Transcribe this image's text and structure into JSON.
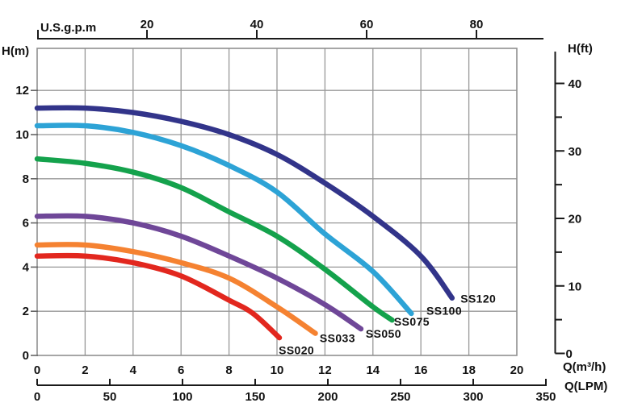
{
  "chart_data": {
    "type": "line",
    "title": "",
    "xlabel_primary": "Q(m³/h)",
    "xlabel_secondary": "Q(LPM)",
    "xlabel_top": "U.S.g.p.m",
    "ylabel_left": "H(m)",
    "ylabel_right": "H(ft)",
    "xlim_m3h": [
      0,
      20
    ],
    "ylim_m": [
      0,
      13.9
    ],
    "grid": true,
    "legend_position": "inline-curve-end-labels",
    "x_axes": [
      {
        "id": "usgpm",
        "label": "U.S.g.p.m",
        "position": "top",
        "ticks": [
          20,
          40,
          60,
          80
        ]
      },
      {
        "id": "m3h",
        "label": "Q(m³/h)",
        "position": "bottom",
        "ticks": [
          0,
          2,
          4,
          6,
          8,
          10,
          12,
          14,
          16,
          18,
          20
        ]
      },
      {
        "id": "lpm",
        "label": "Q(LPM)",
        "position": "bottom-outer",
        "ticks": [
          0,
          50,
          100,
          150,
          200,
          250,
          300,
          350
        ]
      }
    ],
    "y_axes": [
      {
        "id": "hm",
        "label": "H(m)",
        "position": "left",
        "ticks": [
          0,
          2,
          4,
          6,
          8,
          10,
          12
        ]
      },
      {
        "id": "hft",
        "label": "H(ft)",
        "position": "right",
        "ticks": [
          0,
          10,
          20,
          30,
          40
        ],
        "minor_ticks": [
          5,
          15,
          25,
          35
        ]
      }
    ],
    "series": [
      {
        "name": "SS120",
        "color": "#32348a",
        "points": [
          [
            0,
            11.2
          ],
          [
            2,
            11.2
          ],
          [
            4,
            11.0
          ],
          [
            6,
            10.6
          ],
          [
            8,
            10.0
          ],
          [
            10,
            9.1
          ],
          [
            12,
            7.8
          ],
          [
            14,
            6.3
          ],
          [
            16,
            4.5
          ],
          [
            17.3,
            2.6
          ]
        ],
        "label_at": [
          17.65,
          2.39
        ]
      },
      {
        "name": "SS100",
        "color": "#2da3d6",
        "points": [
          [
            0,
            10.4
          ],
          [
            2,
            10.4
          ],
          [
            4,
            10.1
          ],
          [
            6,
            9.5
          ],
          [
            8,
            8.6
          ],
          [
            10,
            7.4
          ],
          [
            12,
            5.5
          ],
          [
            14,
            3.8
          ],
          [
            15.6,
            1.9
          ]
        ],
        "label_at": [
          16.23,
          1.84
        ]
      },
      {
        "name": "SS075",
        "color": "#14a24c",
        "points": [
          [
            0,
            8.9
          ],
          [
            2,
            8.7
          ],
          [
            4,
            8.3
          ],
          [
            6,
            7.6
          ],
          [
            8,
            6.5
          ],
          [
            10,
            5.4
          ],
          [
            12,
            3.9
          ],
          [
            14,
            2.2
          ],
          [
            14.8,
            1.6
          ]
        ],
        "label_at": [
          14.88,
          1.35
        ]
      },
      {
        "name": "SS050",
        "color": "#6f4798",
        "points": [
          [
            0,
            6.3
          ],
          [
            2,
            6.3
          ],
          [
            4,
            6.0
          ],
          [
            6,
            5.4
          ],
          [
            8,
            4.5
          ],
          [
            10,
            3.5
          ],
          [
            12,
            2.3
          ],
          [
            13.5,
            1.2
          ]
        ],
        "label_at": [
          13.7,
          0.8
        ]
      },
      {
        "name": "SS033",
        "color": "#f58231",
        "points": [
          [
            0,
            5.0
          ],
          [
            2,
            5.0
          ],
          [
            4,
            4.7
          ],
          [
            6,
            4.2
          ],
          [
            8,
            3.5
          ],
          [
            10,
            2.2
          ],
          [
            11.6,
            1.0
          ]
        ],
        "label_at": [
          11.78,
          0.6
        ]
      },
      {
        "name": "SS020",
        "color": "#e2271e",
        "points": [
          [
            0,
            4.5
          ],
          [
            2,
            4.5
          ],
          [
            4,
            4.2
          ],
          [
            6,
            3.6
          ],
          [
            8,
            2.5
          ],
          [
            9,
            1.9
          ],
          [
            10.1,
            0.8
          ]
        ],
        "label_at": [
          10.07,
          0.05
        ]
      }
    ]
  },
  "colors": {
    "grid": "#989898",
    "frame": "#8f8f8f",
    "axis": "#1a1a1a",
    "text": "#111111",
    "background": "#ffffff"
  }
}
